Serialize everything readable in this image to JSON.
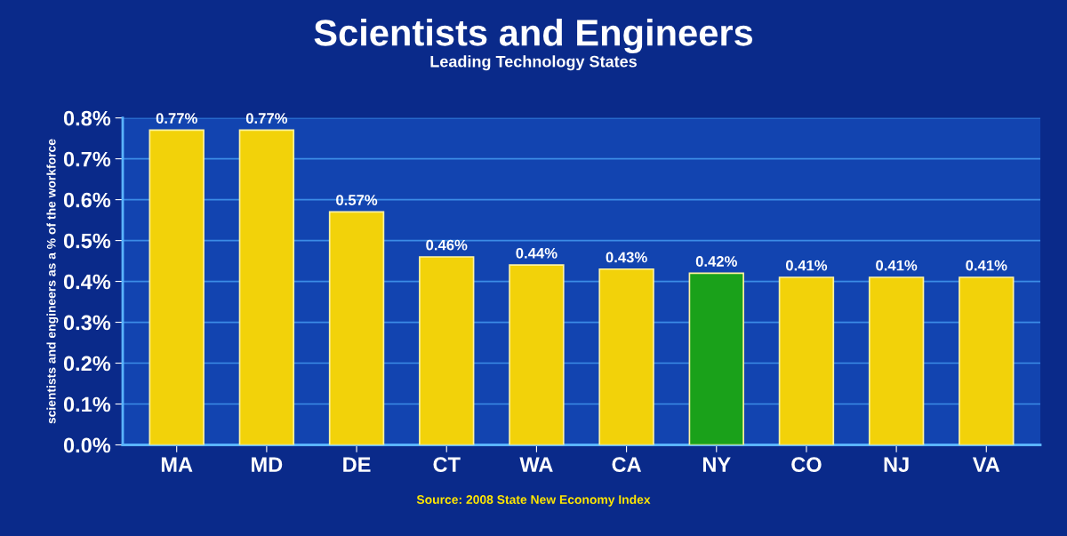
{
  "chart_data": {
    "type": "bar",
    "title": "Scientists and Engineers",
    "subtitle": "Leading Technology States",
    "ylabel": "scientists and engineers as a % of the workforce",
    "categories": [
      "MA",
      "MD",
      "DE",
      "CT",
      "WA",
      "CA",
      "NY",
      "CO",
      "NJ",
      "VA"
    ],
    "values": [
      0.77,
      0.77,
      0.57,
      0.46,
      0.44,
      0.43,
      0.42,
      0.41,
      0.41,
      0.41
    ],
    "colors": [
      "#f2d20a",
      "#f2d20a",
      "#f2d20a",
      "#f2d20a",
      "#f2d20a",
      "#f2d20a",
      "#1aa11a",
      "#f2d20a",
      "#f2d20a",
      "#f2d20a"
    ],
    "value_labels": [
      "0.77%",
      "0.77%",
      "0.57%",
      "0.46%",
      "0.44%",
      "0.43%",
      "0.42%",
      "0.41%",
      "0.41%",
      "0.41%"
    ],
    "ylim": [
      0,
      0.8
    ],
    "yticks": [
      {
        "value": 0,
        "label": "0.0%"
      },
      {
        "value": 0.1,
        "label": "0.1%"
      },
      {
        "value": 0.2,
        "label": "0.2%"
      },
      {
        "value": 0.3,
        "label": "0.3%"
      },
      {
        "value": 0.4,
        "label": "0.4%"
      },
      {
        "value": 0.5,
        "label": "0.5%"
      },
      {
        "value": 0.6,
        "label": "0.6%"
      },
      {
        "value": 0.7,
        "label": "0.7%"
      },
      {
        "value": 0.8,
        "label": "0.8%"
      }
    ],
    "grid": "y",
    "annotations": [
      "Source: 2008 State New Economy Index"
    ]
  }
}
